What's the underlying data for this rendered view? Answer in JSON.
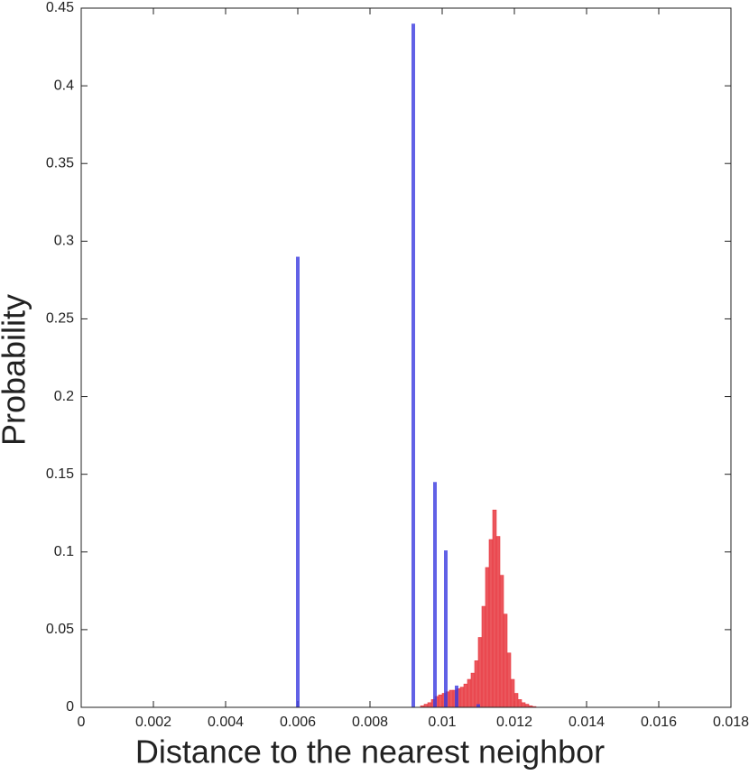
{
  "chart_data": {
    "type": "histogram",
    "x_label": "Distance to the nearest neighbor",
    "y_label": "Probability",
    "xlim": [
      0,
      0.018
    ],
    "ylim": [
      0,
      0.45
    ],
    "xticks": [
      0,
      0.002,
      0.004,
      0.006,
      0.008,
      0.01,
      0.012,
      0.014,
      0.016,
      0.018
    ],
    "yticks": [
      0,
      0.05,
      0.1,
      0.15,
      0.2,
      0.25,
      0.3,
      0.35,
      0.4,
      0.45
    ],
    "series": [
      {
        "color": "#e8383f",
        "bins": [
          0.0094,
          0.0095,
          0.0096,
          0.0097,
          0.0098,
          0.0099,
          0.01,
          0.0101,
          0.0102,
          0.0103,
          0.0104,
          0.0105,
          0.0106,
          0.0107,
          0.0108,
          0.0109,
          0.011,
          0.0111,
          0.0112,
          0.0113,
          0.0114,
          0.0115,
          0.0116,
          0.0117,
          0.0118,
          0.0119,
          0.012,
          0.0121,
          0.0122,
          0.0123,
          0.0124,
          0.0125,
          0.0126
        ],
        "values": [
          0.001,
          0.002,
          0.003,
          0.005,
          0.007,
          0.008,
          0.009,
          0.01,
          0.011,
          0.011,
          0.012,
          0.013,
          0.015,
          0.018,
          0.022,
          0.03,
          0.045,
          0.065,
          0.09,
          0.108,
          0.127,
          0.11,
          0.085,
          0.06,
          0.035,
          0.018,
          0.009,
          0.005,
          0.003,
          0.002,
          0.001,
          0.0005
        ]
      },
      {
        "color": "#3a3ae0",
        "x": [
          0.006,
          0.0092,
          0.0098,
          0.0101,
          0.0104,
          0.011
        ],
        "values": [
          0.29,
          0.44,
          0.145,
          0.101,
          0.014,
          0.002
        ]
      }
    ]
  }
}
